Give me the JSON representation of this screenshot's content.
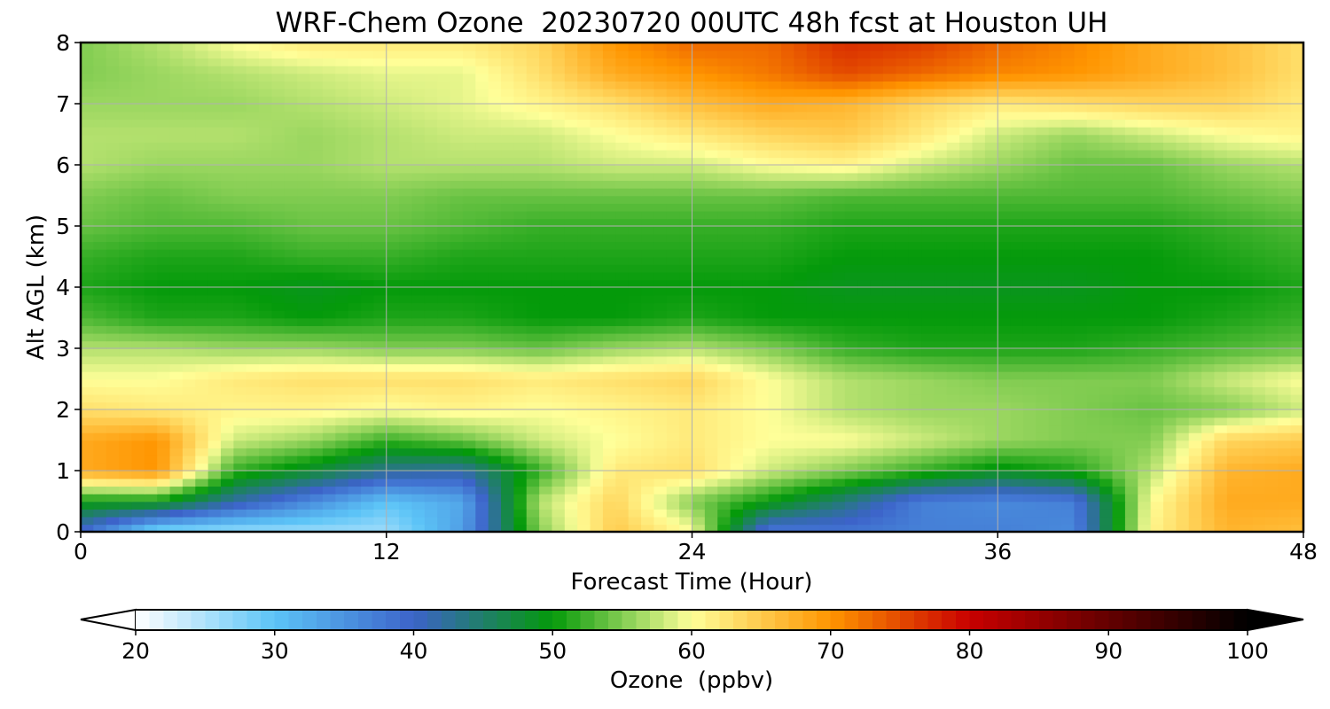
{
  "chart_data": {
    "type": "heatmap",
    "title": "WRF-Chem Ozone  20230720 00UTC 48h fcst at Houston UH",
    "xlabel": "Forecast Time (Hour)",
    "ylabel": "Alt AGL (km)",
    "xlim": [
      0,
      48
    ],
    "ylim": [
      0,
      8
    ],
    "x_ticks": [
      "0",
      "12",
      "24",
      "36",
      "48"
    ],
    "y_ticks": [
      "0",
      "1",
      "2",
      "3",
      "4",
      "5",
      "6",
      "7",
      "8"
    ],
    "grid": true,
    "colorbar": {
      "label": "Ozone  (ppbv)",
      "range": [
        20,
        100
      ],
      "ticks": [
        "20",
        "30",
        "40",
        "50",
        "60",
        "70",
        "80",
        "90",
        "100"
      ],
      "extend": "both",
      "stops": [
        {
          "value": 20,
          "color": "#ffffff"
        },
        {
          "value": 30,
          "color": "#5cc4f7"
        },
        {
          "value": 40,
          "color": "#3c63c9"
        },
        {
          "value": 50,
          "color": "#049a0a"
        },
        {
          "value": 60,
          "color": "#ffff99"
        },
        {
          "value": 70,
          "color": "#ff9500"
        },
        {
          "value": 80,
          "color": "#c80000"
        },
        {
          "value": 100,
          "color": "#000000"
        }
      ]
    },
    "levels_km": [
      0,
      0.5,
      1,
      1.5,
      2,
      2.5,
      3,
      3.5,
      4,
      4.5,
      5,
      5.5,
      6,
      6.5,
      7,
      7.5,
      8
    ],
    "hours": [
      0,
      3,
      6,
      9,
      12,
      15,
      18,
      21,
      24,
      27,
      30,
      33,
      36,
      39,
      42,
      45,
      48
    ],
    "ozone_ppbv": [
      [
        39,
        27,
        26,
        26,
        26,
        34,
        55,
        65,
        60,
        37,
        38,
        37,
        37,
        36,
        61,
        67,
        66
      ],
      [
        50,
        50,
        42,
        36,
        30,
        33,
        57,
        64,
        55,
        50,
        44,
        37,
        36,
        37,
        60,
        68,
        68
      ],
      [
        68,
        70,
        52,
        48,
        43,
        42,
        52,
        62,
        63,
        58,
        55,
        52,
        49,
        51,
        57,
        67,
        68
      ],
      [
        68,
        70,
        58,
        56,
        52,
        54,
        58,
        60,
        62,
        60,
        60,
        58,
        56,
        55,
        55,
        64,
        65
      ],
      [
        63,
        62,
        61,
        61,
        60,
        61,
        60,
        61,
        62,
        60,
        57,
        56,
        56,
        55,
        54,
        55,
        58
      ],
      [
        60,
        60,
        62,
        63,
        63,
        63,
        62,
        63,
        64,
        60,
        57,
        56,
        55,
        55,
        55,
        58,
        60
      ],
      [
        57,
        57,
        56,
        56,
        55,
        55,
        54,
        56,
        57,
        55,
        52,
        51,
        51,
        51,
        52,
        53,
        54
      ],
      [
        53,
        51,
        51,
        50,
        51,
        51,
        50,
        50,
        51,
        50,
        50,
        50,
        50,
        50,
        50,
        51,
        52
      ],
      [
        51,
        50,
        50,
        49,
        50,
        50,
        50,
        50,
        50,
        50,
        49,
        49,
        49,
        49,
        50,
        50,
        51
      ],
      [
        52,
        51,
        51,
        52,
        52,
        51,
        51,
        51,
        51,
        51,
        50,
        50,
        50,
        50,
        50,
        51,
        52
      ],
      [
        54,
        53,
        53,
        54,
        54,
        53,
        52,
        52,
        52,
        52,
        51,
        51,
        51,
        51,
        51,
        52,
        53
      ],
      [
        55,
        54,
        55,
        55,
        55,
        54,
        54,
        54,
        54,
        54,
        53,
        53,
        53,
        53,
        53,
        54,
        55
      ],
      [
        57,
        56,
        56,
        56,
        57,
        57,
        57,
        58,
        58,
        60,
        61,
        58,
        56,
        54,
        54,
        56,
        57
      ],
      [
        57,
        57,
        57,
        56,
        57,
        58,
        58,
        60,
        62,
        64,
        65,
        62,
        58,
        56,
        58,
        60,
        61
      ],
      [
        56,
        56,
        56,
        57,
        58,
        59,
        61,
        63,
        66,
        68,
        67,
        64,
        62,
        63,
        64,
        64,
        62
      ],
      [
        55,
        56,
        57,
        58,
        59,
        59,
        63,
        68,
        70,
        72,
        75,
        73,
        71,
        70,
        68,
        66,
        63
      ],
      [
        55,
        57,
        60,
        62,
        62,
        62,
        64,
        70,
        73,
        73,
        77,
        76,
        73,
        71,
        68,
        66,
        63
      ]
    ]
  }
}
